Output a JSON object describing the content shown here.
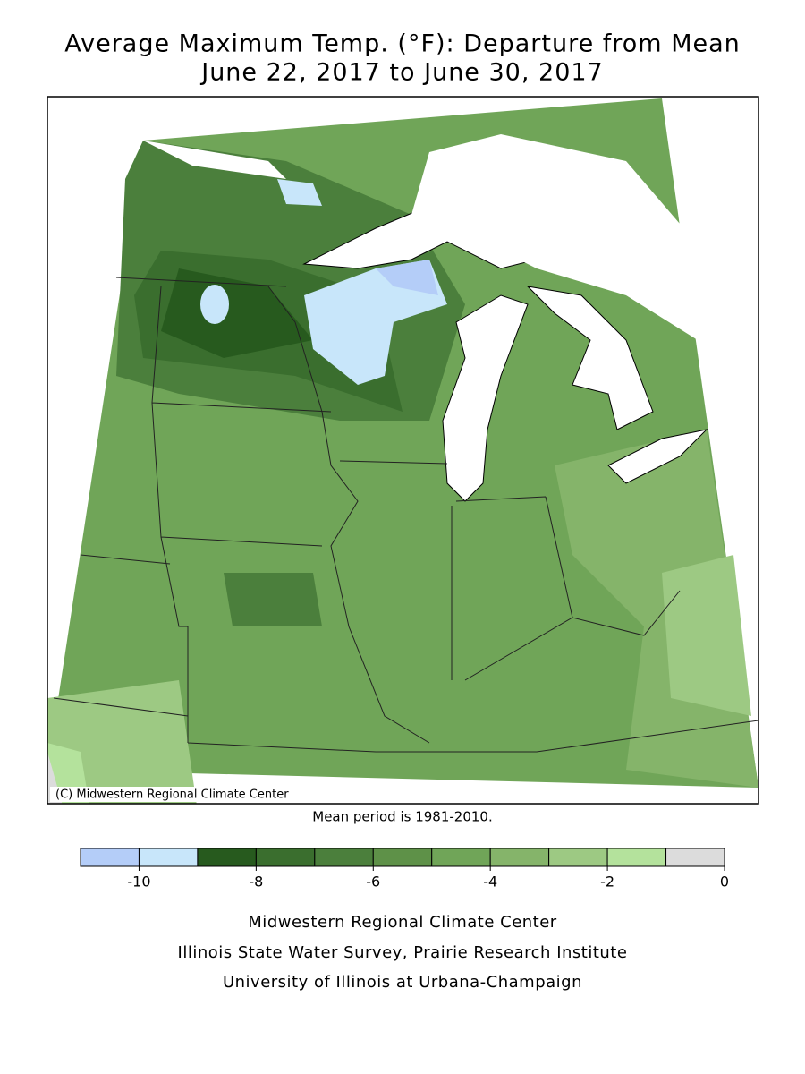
{
  "header": {
    "title": "Average Maximum Temp. (°F): Departure from Mean",
    "subtitle": "June 22, 2017 to June 30, 2017"
  },
  "map": {
    "copyright": "(C) Midwestern Regional Climate Center",
    "note": "Mean period is 1981-2010."
  },
  "chart_data": {
    "type": "colorbar",
    "bins": [
      -11,
      -10,
      -9,
      -8,
      -7,
      -6,
      -5,
      -4,
      -3,
      -2,
      -1,
      0
    ],
    "colors": [
      "#b4cdf8",
      "#c8e6fa",
      "#275a1e",
      "#3a6e2e",
      "#4b7f3c",
      "#5e9148",
      "#70a558",
      "#85b46a",
      "#9dc983",
      "#b4e29c",
      "#dcdcdc"
    ],
    "xlim": [
      -11,
      0
    ],
    "xticks": [
      -10,
      -8,
      -6,
      -4,
      -2,
      0
    ]
  },
  "footer": {
    "lines": [
      "Midwestern Regional Climate Center",
      "Illinois State Water Survey, Prairie Research Institute",
      "University of Illinois at Urbana-Champaign"
    ]
  }
}
